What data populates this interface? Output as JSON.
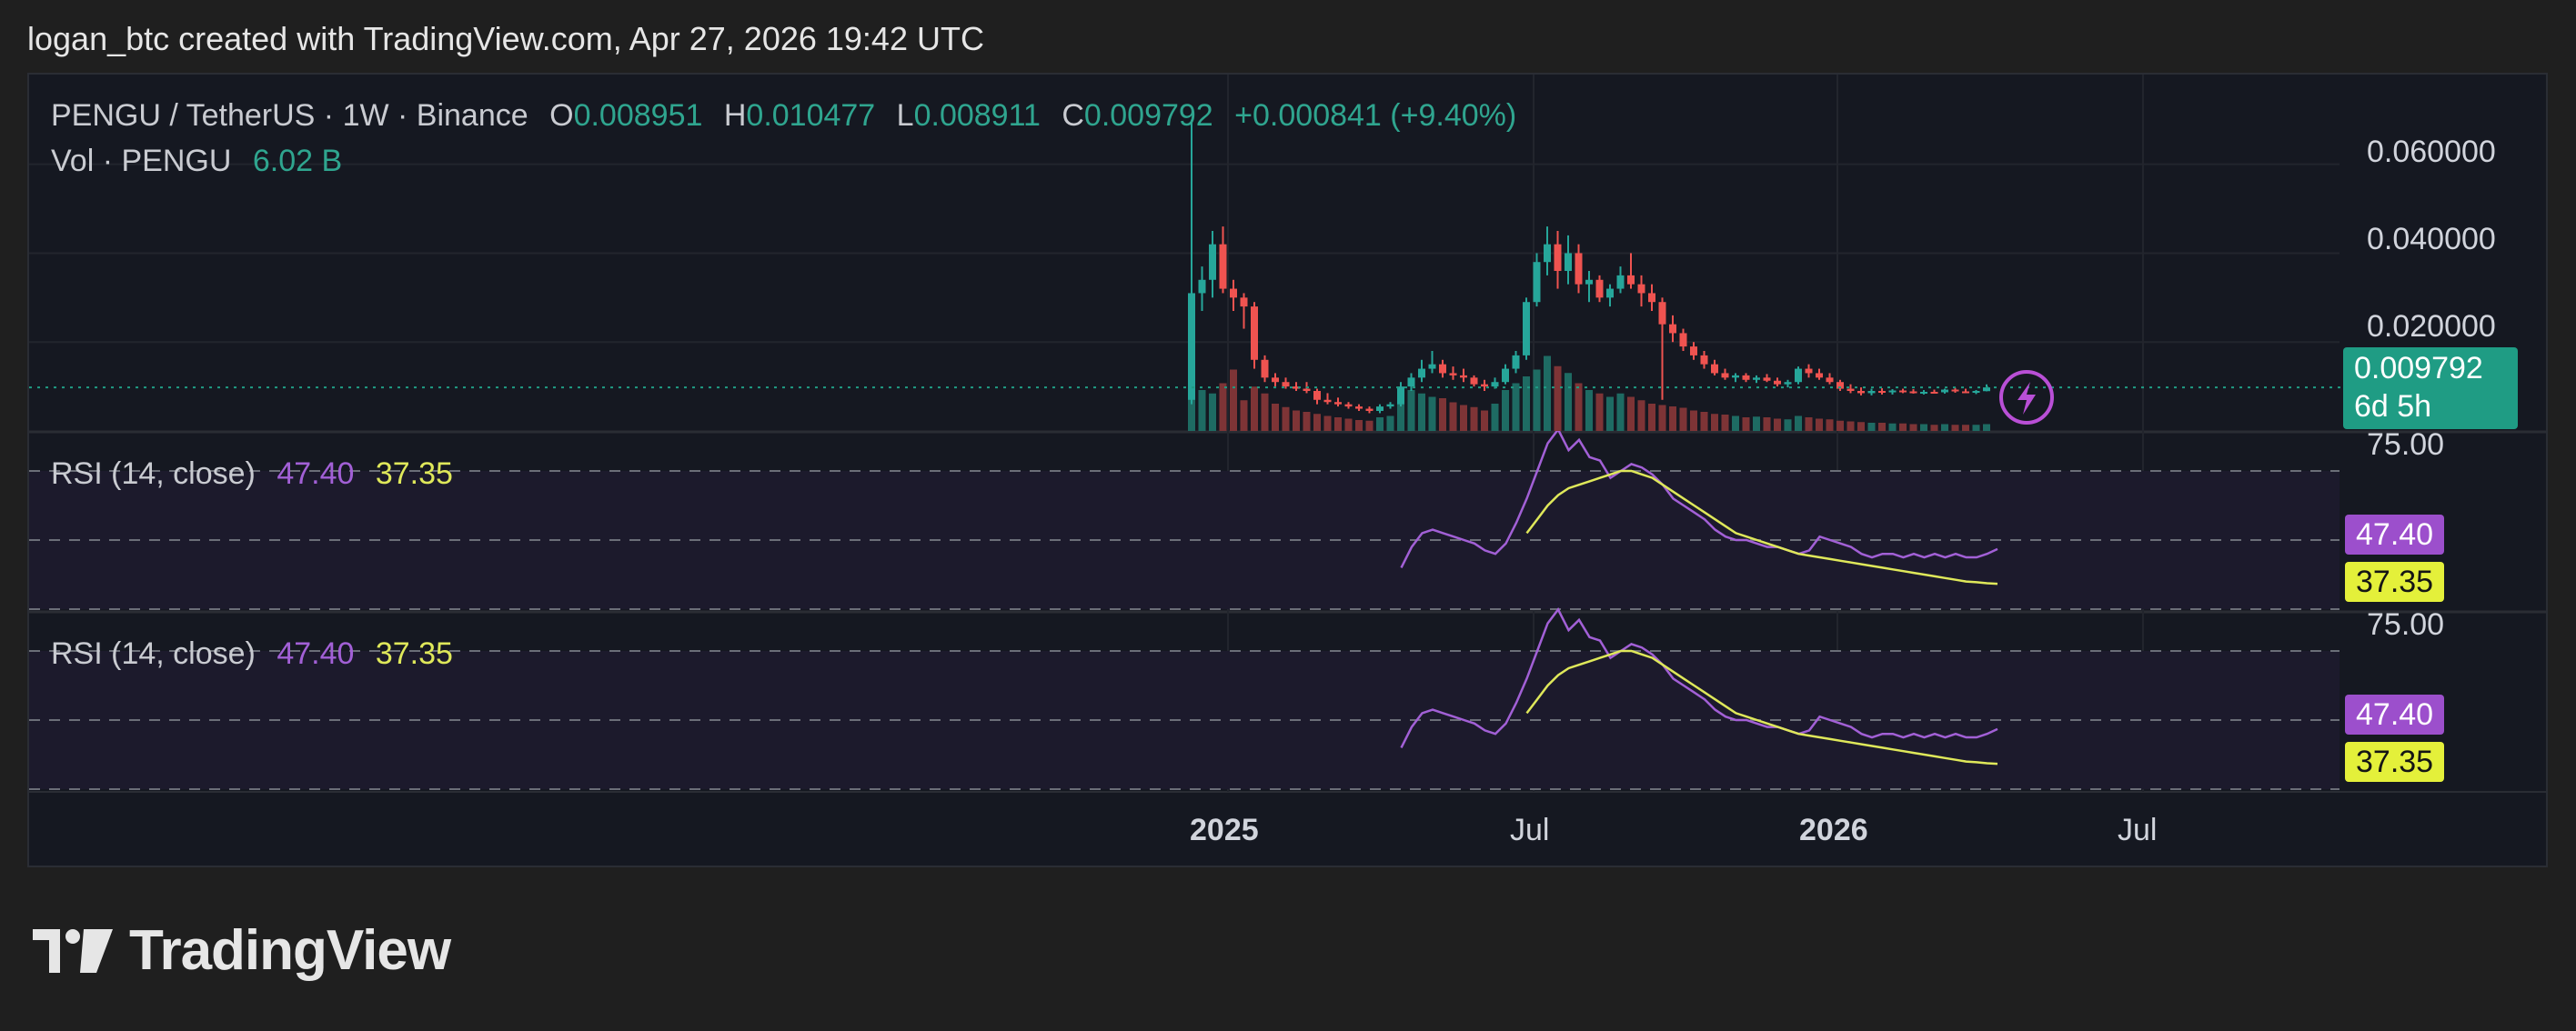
{
  "header": {
    "attribution": "logan_btc created with TradingView.com, Apr 27, 2026 19:42 UTC"
  },
  "legend": {
    "symbol": "PENGU / TetherUS · 1W · Binance",
    "o_label": "O",
    "o_value": "0.008951",
    "h_label": "H",
    "h_value": "0.010477",
    "l_label": "L",
    "l_value": "0.008911",
    "c_label": "C",
    "c_value": "0.009792",
    "change": "+0.000841 (+9.40%)",
    "vol_label": "Vol · PENGU",
    "vol_value": "6.02 B"
  },
  "price_scale": {
    "ticks": [
      "0.060000",
      "0.040000",
      "0.020000"
    ],
    "last_price": "0.009792",
    "countdown": "6d 5h"
  },
  "rsi_panes": [
    {
      "title": "RSI (14, close)",
      "rsi_value": "47.40",
      "ma_value": "37.35",
      "top_tick": "75.00"
    },
    {
      "title": "RSI (14, close)",
      "rsi_value": "47.40",
      "ma_value": "37.35",
      "top_tick": "75.00"
    }
  ],
  "time_axis": [
    "2025",
    "Jul",
    "2026",
    "Jul"
  ],
  "brand": {
    "name": "TradingView"
  },
  "colors": {
    "up": "#26a69a",
    "down": "#ef5350",
    "rsi": "#a260d6",
    "rsi_ma": "#dfe85a",
    "last_price_bg": "#1f9c84",
    "panel": "#151821"
  },
  "chart_data": {
    "type": "candlestick",
    "symbol": "PENGU / TetherUS",
    "interval": "1W",
    "exchange": "Binance",
    "candles": [
      {
        "o": 0.007,
        "h": 0.07,
        "l": 0.006,
        "c": 0.031
      },
      {
        "o": 0.031,
        "h": 0.037,
        "l": 0.027,
        "c": 0.034
      },
      {
        "o": 0.034,
        "h": 0.045,
        "l": 0.03,
        "c": 0.042
      },
      {
        "o": 0.042,
        "h": 0.046,
        "l": 0.031,
        "c": 0.032
      },
      {
        "o": 0.032,
        "h": 0.034,
        "l": 0.027,
        "c": 0.03
      },
      {
        "o": 0.03,
        "h": 0.031,
        "l": 0.023,
        "c": 0.028
      },
      {
        "o": 0.028,
        "h": 0.029,
        "l": 0.014,
        "c": 0.016
      },
      {
        "o": 0.016,
        "h": 0.017,
        "l": 0.011,
        "c": 0.012
      },
      {
        "o": 0.012,
        "h": 0.013,
        "l": 0.01,
        "c": 0.011
      },
      {
        "o": 0.011,
        "h": 0.012,
        "l": 0.0095,
        "c": 0.01
      },
      {
        "o": 0.01,
        "h": 0.011,
        "l": 0.009,
        "c": 0.0095
      },
      {
        "o": 0.0095,
        "h": 0.011,
        "l": 0.0085,
        "c": 0.009
      },
      {
        "o": 0.009,
        "h": 0.0095,
        "l": 0.006,
        "c": 0.007
      },
      {
        "o": 0.007,
        "h": 0.0085,
        "l": 0.006,
        "c": 0.0065
      },
      {
        "o": 0.0065,
        "h": 0.0075,
        "l": 0.0055,
        "c": 0.006
      },
      {
        "o": 0.006,
        "h": 0.0065,
        "l": 0.005,
        "c": 0.0055
      },
      {
        "o": 0.0055,
        "h": 0.006,
        "l": 0.0045,
        "c": 0.005
      },
      {
        "o": 0.005,
        "h": 0.0055,
        "l": 0.004,
        "c": 0.0045
      },
      {
        "o": 0.0045,
        "h": 0.006,
        "l": 0.004,
        "c": 0.0055
      },
      {
        "o": 0.0055,
        "h": 0.0065,
        "l": 0.005,
        "c": 0.006
      },
      {
        "o": 0.006,
        "h": 0.011,
        "l": 0.0055,
        "c": 0.01
      },
      {
        "o": 0.01,
        "h": 0.013,
        "l": 0.009,
        "c": 0.012
      },
      {
        "o": 0.012,
        "h": 0.016,
        "l": 0.011,
        "c": 0.014
      },
      {
        "o": 0.014,
        "h": 0.018,
        "l": 0.013,
        "c": 0.015
      },
      {
        "o": 0.015,
        "h": 0.016,
        "l": 0.012,
        "c": 0.013
      },
      {
        "o": 0.013,
        "h": 0.0145,
        "l": 0.0115,
        "c": 0.0125
      },
      {
        "o": 0.0125,
        "h": 0.014,
        "l": 0.011,
        "c": 0.012
      },
      {
        "o": 0.012,
        "h": 0.0125,
        "l": 0.01,
        "c": 0.0105
      },
      {
        "o": 0.0105,
        "h": 0.0115,
        "l": 0.009,
        "c": 0.01
      },
      {
        "o": 0.01,
        "h": 0.012,
        "l": 0.0095,
        "c": 0.011
      },
      {
        "o": 0.011,
        "h": 0.015,
        "l": 0.0105,
        "c": 0.014
      },
      {
        "o": 0.014,
        "h": 0.018,
        "l": 0.013,
        "c": 0.017
      },
      {
        "o": 0.017,
        "h": 0.03,
        "l": 0.016,
        "c": 0.029
      },
      {
        "o": 0.029,
        "h": 0.04,
        "l": 0.028,
        "c": 0.038
      },
      {
        "o": 0.038,
        "h": 0.046,
        "l": 0.035,
        "c": 0.042
      },
      {
        "o": 0.042,
        "h": 0.045,
        "l": 0.032,
        "c": 0.036
      },
      {
        "o": 0.036,
        "h": 0.044,
        "l": 0.033,
        "c": 0.04
      },
      {
        "o": 0.04,
        "h": 0.042,
        "l": 0.031,
        "c": 0.033
      },
      {
        "o": 0.033,
        "h": 0.036,
        "l": 0.029,
        "c": 0.034
      },
      {
        "o": 0.034,
        "h": 0.035,
        "l": 0.029,
        "c": 0.03
      },
      {
        "o": 0.03,
        "h": 0.033,
        "l": 0.028,
        "c": 0.032
      },
      {
        "o": 0.032,
        "h": 0.037,
        "l": 0.031,
        "c": 0.035
      },
      {
        "o": 0.035,
        "h": 0.04,
        "l": 0.032,
        "c": 0.033
      },
      {
        "o": 0.033,
        "h": 0.035,
        "l": 0.028,
        "c": 0.031
      },
      {
        "o": 0.031,
        "h": 0.033,
        "l": 0.027,
        "c": 0.029
      },
      {
        "o": 0.029,
        "h": 0.03,
        "l": 0.007,
        "c": 0.024
      },
      {
        "o": 0.024,
        "h": 0.026,
        "l": 0.02,
        "c": 0.022
      },
      {
        "o": 0.022,
        "h": 0.023,
        "l": 0.018,
        "c": 0.019
      },
      {
        "o": 0.019,
        "h": 0.02,
        "l": 0.016,
        "c": 0.017
      },
      {
        "o": 0.017,
        "h": 0.018,
        "l": 0.014,
        "c": 0.015
      },
      {
        "o": 0.015,
        "h": 0.016,
        "l": 0.0125,
        "c": 0.013
      },
      {
        "o": 0.013,
        "h": 0.014,
        "l": 0.0115,
        "c": 0.012
      },
      {
        "o": 0.012,
        "h": 0.013,
        "l": 0.011,
        "c": 0.0125
      },
      {
        "o": 0.0125,
        "h": 0.013,
        "l": 0.011,
        "c": 0.0115
      },
      {
        "o": 0.0115,
        "h": 0.0125,
        "l": 0.0108,
        "c": 0.012
      },
      {
        "o": 0.012,
        "h": 0.0128,
        "l": 0.011,
        "c": 0.0113
      },
      {
        "o": 0.0113,
        "h": 0.012,
        "l": 0.01,
        "c": 0.0105
      },
      {
        "o": 0.0105,
        "h": 0.0115,
        "l": 0.0098,
        "c": 0.011
      },
      {
        "o": 0.011,
        "h": 0.0145,
        "l": 0.0105,
        "c": 0.014
      },
      {
        "o": 0.014,
        "h": 0.015,
        "l": 0.012,
        "c": 0.013
      },
      {
        "o": 0.013,
        "h": 0.014,
        "l": 0.0115,
        "c": 0.012
      },
      {
        "o": 0.012,
        "h": 0.013,
        "l": 0.0105,
        "c": 0.011
      },
      {
        "o": 0.011,
        "h": 0.0115,
        "l": 0.009,
        "c": 0.0095
      },
      {
        "o": 0.0095,
        "h": 0.0105,
        "l": 0.0085,
        "c": 0.009
      },
      {
        "o": 0.009,
        "h": 0.0098,
        "l": 0.008,
        "c": 0.0085
      },
      {
        "o": 0.0085,
        "h": 0.0095,
        "l": 0.008,
        "c": 0.009
      },
      {
        "o": 0.009,
        "h": 0.0096,
        "l": 0.0082,
        "c": 0.0087
      },
      {
        "o": 0.0087,
        "h": 0.0094,
        "l": 0.0082,
        "c": 0.0091
      },
      {
        "o": 0.0091,
        "h": 0.0095,
        "l": 0.0085,
        "c": 0.0089
      },
      {
        "o": 0.0089,
        "h": 0.0094,
        "l": 0.0084,
        "c": 0.0086
      },
      {
        "o": 0.0086,
        "h": 0.0092,
        "l": 0.0082,
        "c": 0.0088
      },
      {
        "o": 0.0088,
        "h": 0.0093,
        "l": 0.0085,
        "c": 0.0087
      },
      {
        "o": 0.0087,
        "h": 0.0095,
        "l": 0.0084,
        "c": 0.0093
      },
      {
        "o": 0.0093,
        "h": 0.0097,
        "l": 0.0086,
        "c": 0.0089
      },
      {
        "o": 0.0089,
        "h": 0.0095,
        "l": 0.0085,
        "c": 0.0087
      },
      {
        "o": 0.0087,
        "h": 0.0092,
        "l": 0.0083,
        "c": 0.009
      },
      {
        "o": 0.008951,
        "h": 0.010477,
        "l": 0.008911,
        "c": 0.009792
      }
    ],
    "volume": [
      120,
      60,
      55,
      70,
      90,
      45,
      65,
      55,
      40,
      35,
      30,
      28,
      25,
      22,
      20,
      18,
      16,
      15,
      20,
      22,
      40,
      60,
      55,
      50,
      48,
      42,
      38,
      35,
      30,
      40,
      60,
      70,
      80,
      90,
      110,
      95,
      85,
      70,
      60,
      55,
      50,
      55,
      50,
      45,
      40,
      38,
      36,
      34,
      30,
      28,
      25,
      24,
      22,
      20,
      21,
      20,
      18,
      17,
      22,
      20,
      18,
      17,
      15,
      14,
      13,
      12,
      12,
      11,
      11,
      10,
      10,
      9,
      10,
      9,
      9,
      9,
      10
    ],
    "rsi": [
      null,
      null,
      null,
      null,
      null,
      null,
      null,
      null,
      null,
      null,
      null,
      null,
      null,
      null,
      null,
      null,
      null,
      null,
      null,
      42,
      48,
      52,
      53,
      52,
      51,
      50,
      49,
      47,
      46,
      49,
      55,
      62,
      70,
      78,
      82,
      76,
      79,
      74,
      73,
      68,
      70,
      72,
      71,
      69,
      66,
      62,
      60,
      58,
      56,
      53,
      51,
      50,
      50,
      49,
      48,
      48,
      47,
      46,
      47,
      51,
      50,
      49,
      48,
      46,
      45,
      46,
      46,
      45,
      46,
      45,
      46,
      45,
      46,
      45,
      45,
      46,
      47.4
    ],
    "rsi_ma": [
      null,
      null,
      null,
      null,
      null,
      null,
      null,
      null,
      null,
      null,
      null,
      null,
      null,
      null,
      null,
      null,
      null,
      null,
      null,
      null,
      null,
      null,
      null,
      null,
      null,
      null,
      null,
      null,
      null,
      null,
      null,
      52,
      56,
      60,
      63,
      65,
      66,
      67,
      68,
      69,
      70,
      70,
      69,
      68,
      66,
      64,
      62,
      60,
      58,
      56,
      54,
      52,
      51,
      50,
      49,
      48,
      47,
      46,
      45.5,
      45,
      44.5,
      44,
      43.5,
      43,
      42.5,
      42,
      41.5,
      41,
      40.5,
      40,
      39.5,
      39,
      38.5,
      38,
      37.8,
      37.5,
      37.35
    ],
    "y_ticks": [
      0.06,
      0.04,
      0.02
    ],
    "last_price": 0.009792,
    "rsi_axis": {
      "ylim": [
        30,
        80
      ],
      "bands": [
        70,
        50,
        30
      ]
    },
    "x_labels": [
      "2025",
      "Jul",
      "2026",
      "Jul"
    ],
    "grid": true
  }
}
